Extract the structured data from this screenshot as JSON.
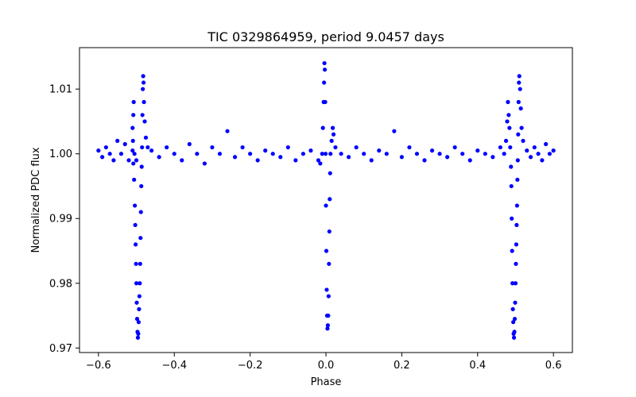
{
  "chart_data": {
    "type": "scatter",
    "title": "TIC 0329864959, period 9.0457 days",
    "xlabel": "Phase",
    "ylabel": "Normalized PDC flux",
    "xlim": [
      -0.65,
      0.65
    ],
    "ylim": [
      0.9693,
      1.0164
    ],
    "xticks": [
      -0.6,
      -0.4,
      -0.2,
      0.0,
      0.2,
      0.4,
      0.6
    ],
    "xtick_labels": [
      "−0.6",
      "−0.4",
      "−0.2",
      "0.0",
      "0.2",
      "0.4",
      "0.6"
    ],
    "yticks": [
      0.97,
      0.98,
      0.99,
      1.0,
      1.01
    ],
    "ytick_labels": [
      "0.97",
      "0.98",
      "0.99",
      "1.00",
      "1.01"
    ],
    "grid": false,
    "marker_color": "#0000ff",
    "series": [
      {
        "points": [
          [
            -0.6,
            1.0005
          ],
          [
            -0.59,
            0.9995
          ],
          [
            -0.58,
            1.001
          ],
          [
            -0.57,
            1.0
          ],
          [
            -0.56,
            0.999
          ],
          [
            -0.55,
            1.002
          ],
          [
            -0.54,
            1.0
          ],
          [
            -0.53,
            1.0015
          ],
          [
            -0.52,
            0.999
          ],
          [
            -0.51,
            1.0005
          ],
          [
            -0.505,
            1.0
          ],
          [
            -0.5,
            0.999
          ],
          [
            -0.508,
            0.9985
          ],
          [
            -0.506,
            0.996
          ],
          [
            -0.504,
            0.992
          ],
          [
            -0.503,
            0.989
          ],
          [
            -0.502,
            0.986
          ],
          [
            -0.501,
            0.983
          ],
          [
            -0.5,
            0.98
          ],
          [
            -0.499,
            0.977
          ],
          [
            -0.498,
            0.9745
          ],
          [
            -0.497,
            0.9725
          ],
          [
            -0.496,
            0.9716
          ],
          [
            -0.495,
            0.9722
          ],
          [
            -0.494,
            0.974
          ],
          [
            -0.493,
            0.976
          ],
          [
            -0.492,
            0.978
          ],
          [
            -0.491,
            0.98
          ],
          [
            -0.49,
            0.983
          ],
          [
            -0.489,
            0.987
          ],
          [
            -0.488,
            0.991
          ],
          [
            -0.487,
            0.995
          ],
          [
            -0.486,
            0.998
          ],
          [
            -0.485,
            1.001
          ],
          [
            -0.484,
            1.006
          ],
          [
            -0.483,
            1.01
          ],
          [
            -0.482,
            1.012
          ],
          [
            -0.481,
            1.011
          ],
          [
            -0.48,
            1.008
          ],
          [
            -0.478,
            1.005
          ],
          [
            -0.475,
            1.0025
          ],
          [
            -0.47,
            1.001
          ],
          [
            -0.51,
            1.004
          ],
          [
            -0.508,
            1.006
          ],
          [
            -0.507,
            1.008
          ],
          [
            -0.509,
            1.002
          ],
          [
            -0.46,
            1.0005
          ],
          [
            -0.44,
            0.9995
          ],
          [
            -0.42,
            1.001
          ],
          [
            -0.4,
            1.0
          ],
          [
            -0.38,
            0.999
          ],
          [
            -0.36,
            1.0015
          ],
          [
            -0.34,
            1.0
          ],
          [
            -0.32,
            0.9985
          ],
          [
            -0.3,
            1.001
          ],
          [
            -0.28,
            1.0
          ],
          [
            -0.26,
            1.0035
          ],
          [
            -0.24,
            0.9995
          ],
          [
            -0.22,
            1.001
          ],
          [
            -0.2,
            1.0
          ],
          [
            -0.18,
            0.999
          ],
          [
            -0.16,
            1.0005
          ],
          [
            -0.14,
            1.0
          ],
          [
            -0.12,
            0.9995
          ],
          [
            -0.1,
            1.001
          ],
          [
            -0.08,
            0.999
          ],
          [
            -0.06,
            1.0
          ],
          [
            -0.04,
            1.0005
          ],
          [
            -0.02,
            0.999
          ],
          [
            -0.015,
            0.9985
          ],
          [
            -0.01,
            1.0
          ],
          [
            -0.008,
            1.004
          ],
          [
            -0.006,
            1.008
          ],
          [
            -0.005,
            1.011
          ],
          [
            -0.004,
            1.014
          ],
          [
            -0.003,
            1.013
          ],
          [
            -0.002,
            1.008
          ],
          [
            -0.001,
            1.0
          ],
          [
            0.0,
            0.992
          ],
          [
            0.001,
            0.985
          ],
          [
            0.002,
            0.979
          ],
          [
            0.003,
            0.975
          ],
          [
            0.004,
            0.973
          ],
          [
            0.005,
            0.9735
          ],
          [
            0.006,
            0.975
          ],
          [
            0.007,
            0.978
          ],
          [
            0.008,
            0.983
          ],
          [
            0.009,
            0.988
          ],
          [
            0.01,
            0.993
          ],
          [
            0.011,
            0.997
          ],
          [
            0.012,
            1.0
          ],
          [
            0.015,
            1.002
          ],
          [
            0.018,
            1.004
          ],
          [
            0.02,
            1.003
          ],
          [
            0.025,
            1.001
          ],
          [
            0.04,
            1.0
          ],
          [
            0.06,
            0.9995
          ],
          [
            0.08,
            1.001
          ],
          [
            0.1,
            1.0
          ],
          [
            0.12,
            0.999
          ],
          [
            0.14,
            1.0005
          ],
          [
            0.16,
            1.0
          ],
          [
            0.18,
            1.0035
          ],
          [
            0.2,
            0.9995
          ],
          [
            0.22,
            1.001
          ],
          [
            0.24,
            1.0
          ],
          [
            0.26,
            0.999
          ],
          [
            0.28,
            1.0005
          ],
          [
            0.3,
            1.0
          ],
          [
            0.32,
            0.9995
          ],
          [
            0.34,
            1.001
          ],
          [
            0.36,
            1.0
          ],
          [
            0.38,
            0.999
          ],
          [
            0.4,
            1.0005
          ],
          [
            0.42,
            1.0
          ],
          [
            0.44,
            0.9995
          ],
          [
            0.46,
            1.001
          ],
          [
            0.47,
            1.0
          ],
          [
            0.475,
            1.002
          ],
          [
            0.478,
            1.005
          ],
          [
            0.48,
            1.008
          ],
          [
            0.482,
            1.006
          ],
          [
            0.484,
            1.004
          ],
          [
            0.486,
            1.001
          ],
          [
            0.488,
            0.998
          ],
          [
            0.489,
            0.995
          ],
          [
            0.49,
            0.99
          ],
          [
            0.491,
            0.985
          ],
          [
            0.492,
            0.98
          ],
          [
            0.493,
            0.976
          ],
          [
            0.494,
            0.974
          ],
          [
            0.495,
            0.9722
          ],
          [
            0.496,
            0.9716
          ],
          [
            0.497,
            0.9725
          ],
          [
            0.498,
            0.9745
          ],
          [
            0.499,
            0.977
          ],
          [
            0.5,
            0.98
          ],
          [
            0.501,
            0.983
          ],
          [
            0.502,
            0.986
          ],
          [
            0.503,
            0.989
          ],
          [
            0.504,
            0.992
          ],
          [
            0.505,
            0.996
          ],
          [
            0.506,
            0.999
          ],
          [
            0.507,
            1.003
          ],
          [
            0.508,
            1.008
          ],
          [
            0.509,
            1.011
          ],
          [
            0.51,
            1.012
          ],
          [
            0.512,
            1.01
          ],
          [
            0.514,
            1.007
          ],
          [
            0.516,
            1.004
          ],
          [
            0.52,
            1.002
          ],
          [
            0.53,
            1.0005
          ],
          [
            0.54,
            0.9995
          ],
          [
            0.55,
            1.001
          ],
          [
            0.56,
            1.0
          ],
          [
            0.57,
            0.999
          ],
          [
            0.58,
            1.0015
          ],
          [
            0.59,
            1.0
          ],
          [
            0.6,
            1.0005
          ]
        ]
      }
    ]
  }
}
